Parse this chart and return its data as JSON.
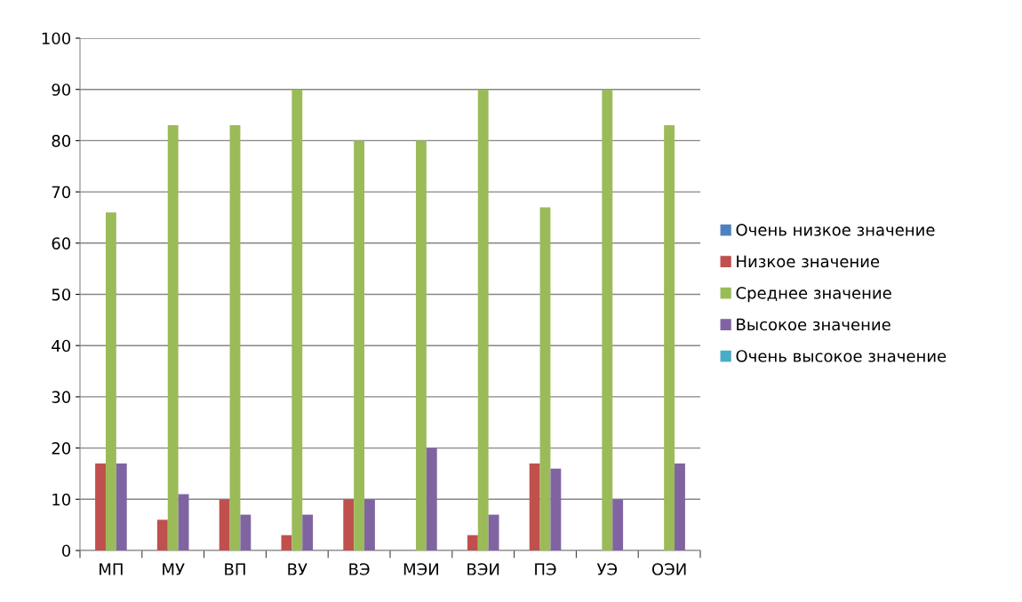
{
  "chart_data": {
    "type": "bar",
    "categories": [
      "МП",
      "МУ",
      "ВП",
      "ВУ",
      "ВЭ",
      "МЭИ",
      "ВЭИ",
      "ПЭ",
      "УЭ",
      "ОЭИ"
    ],
    "series": [
      {
        "name": "Очень низкое значение",
        "color": "#4f81bd",
        "values": [
          0,
          0,
          0,
          0,
          0,
          0,
          0,
          0,
          0,
          0
        ]
      },
      {
        "name": "Низкое значение",
        "color": "#c0504d",
        "values": [
          17,
          6,
          10,
          3,
          10,
          0,
          3,
          17,
          0,
          0
        ]
      },
      {
        "name": "Среднее значение",
        "color": "#9bbb59",
        "values": [
          66,
          83,
          83,
          90,
          80,
          80,
          90,
          67,
          90,
          83
        ]
      },
      {
        "name": "Высокое значение",
        "color": "#8064a2",
        "values": [
          17,
          11,
          7,
          7,
          10,
          20,
          7,
          16,
          10,
          17
        ]
      },
      {
        "name": "Очень высокое значение",
        "color": "#4bacc6",
        "values": [
          0,
          0,
          0,
          0,
          0,
          0,
          0,
          0,
          0,
          0
        ]
      }
    ],
    "ylim": [
      0,
      100
    ],
    "yticks": [
      0,
      10,
      20,
      30,
      40,
      50,
      60,
      70,
      80,
      90,
      100
    ],
    "grid": "y",
    "legend": "right"
  }
}
